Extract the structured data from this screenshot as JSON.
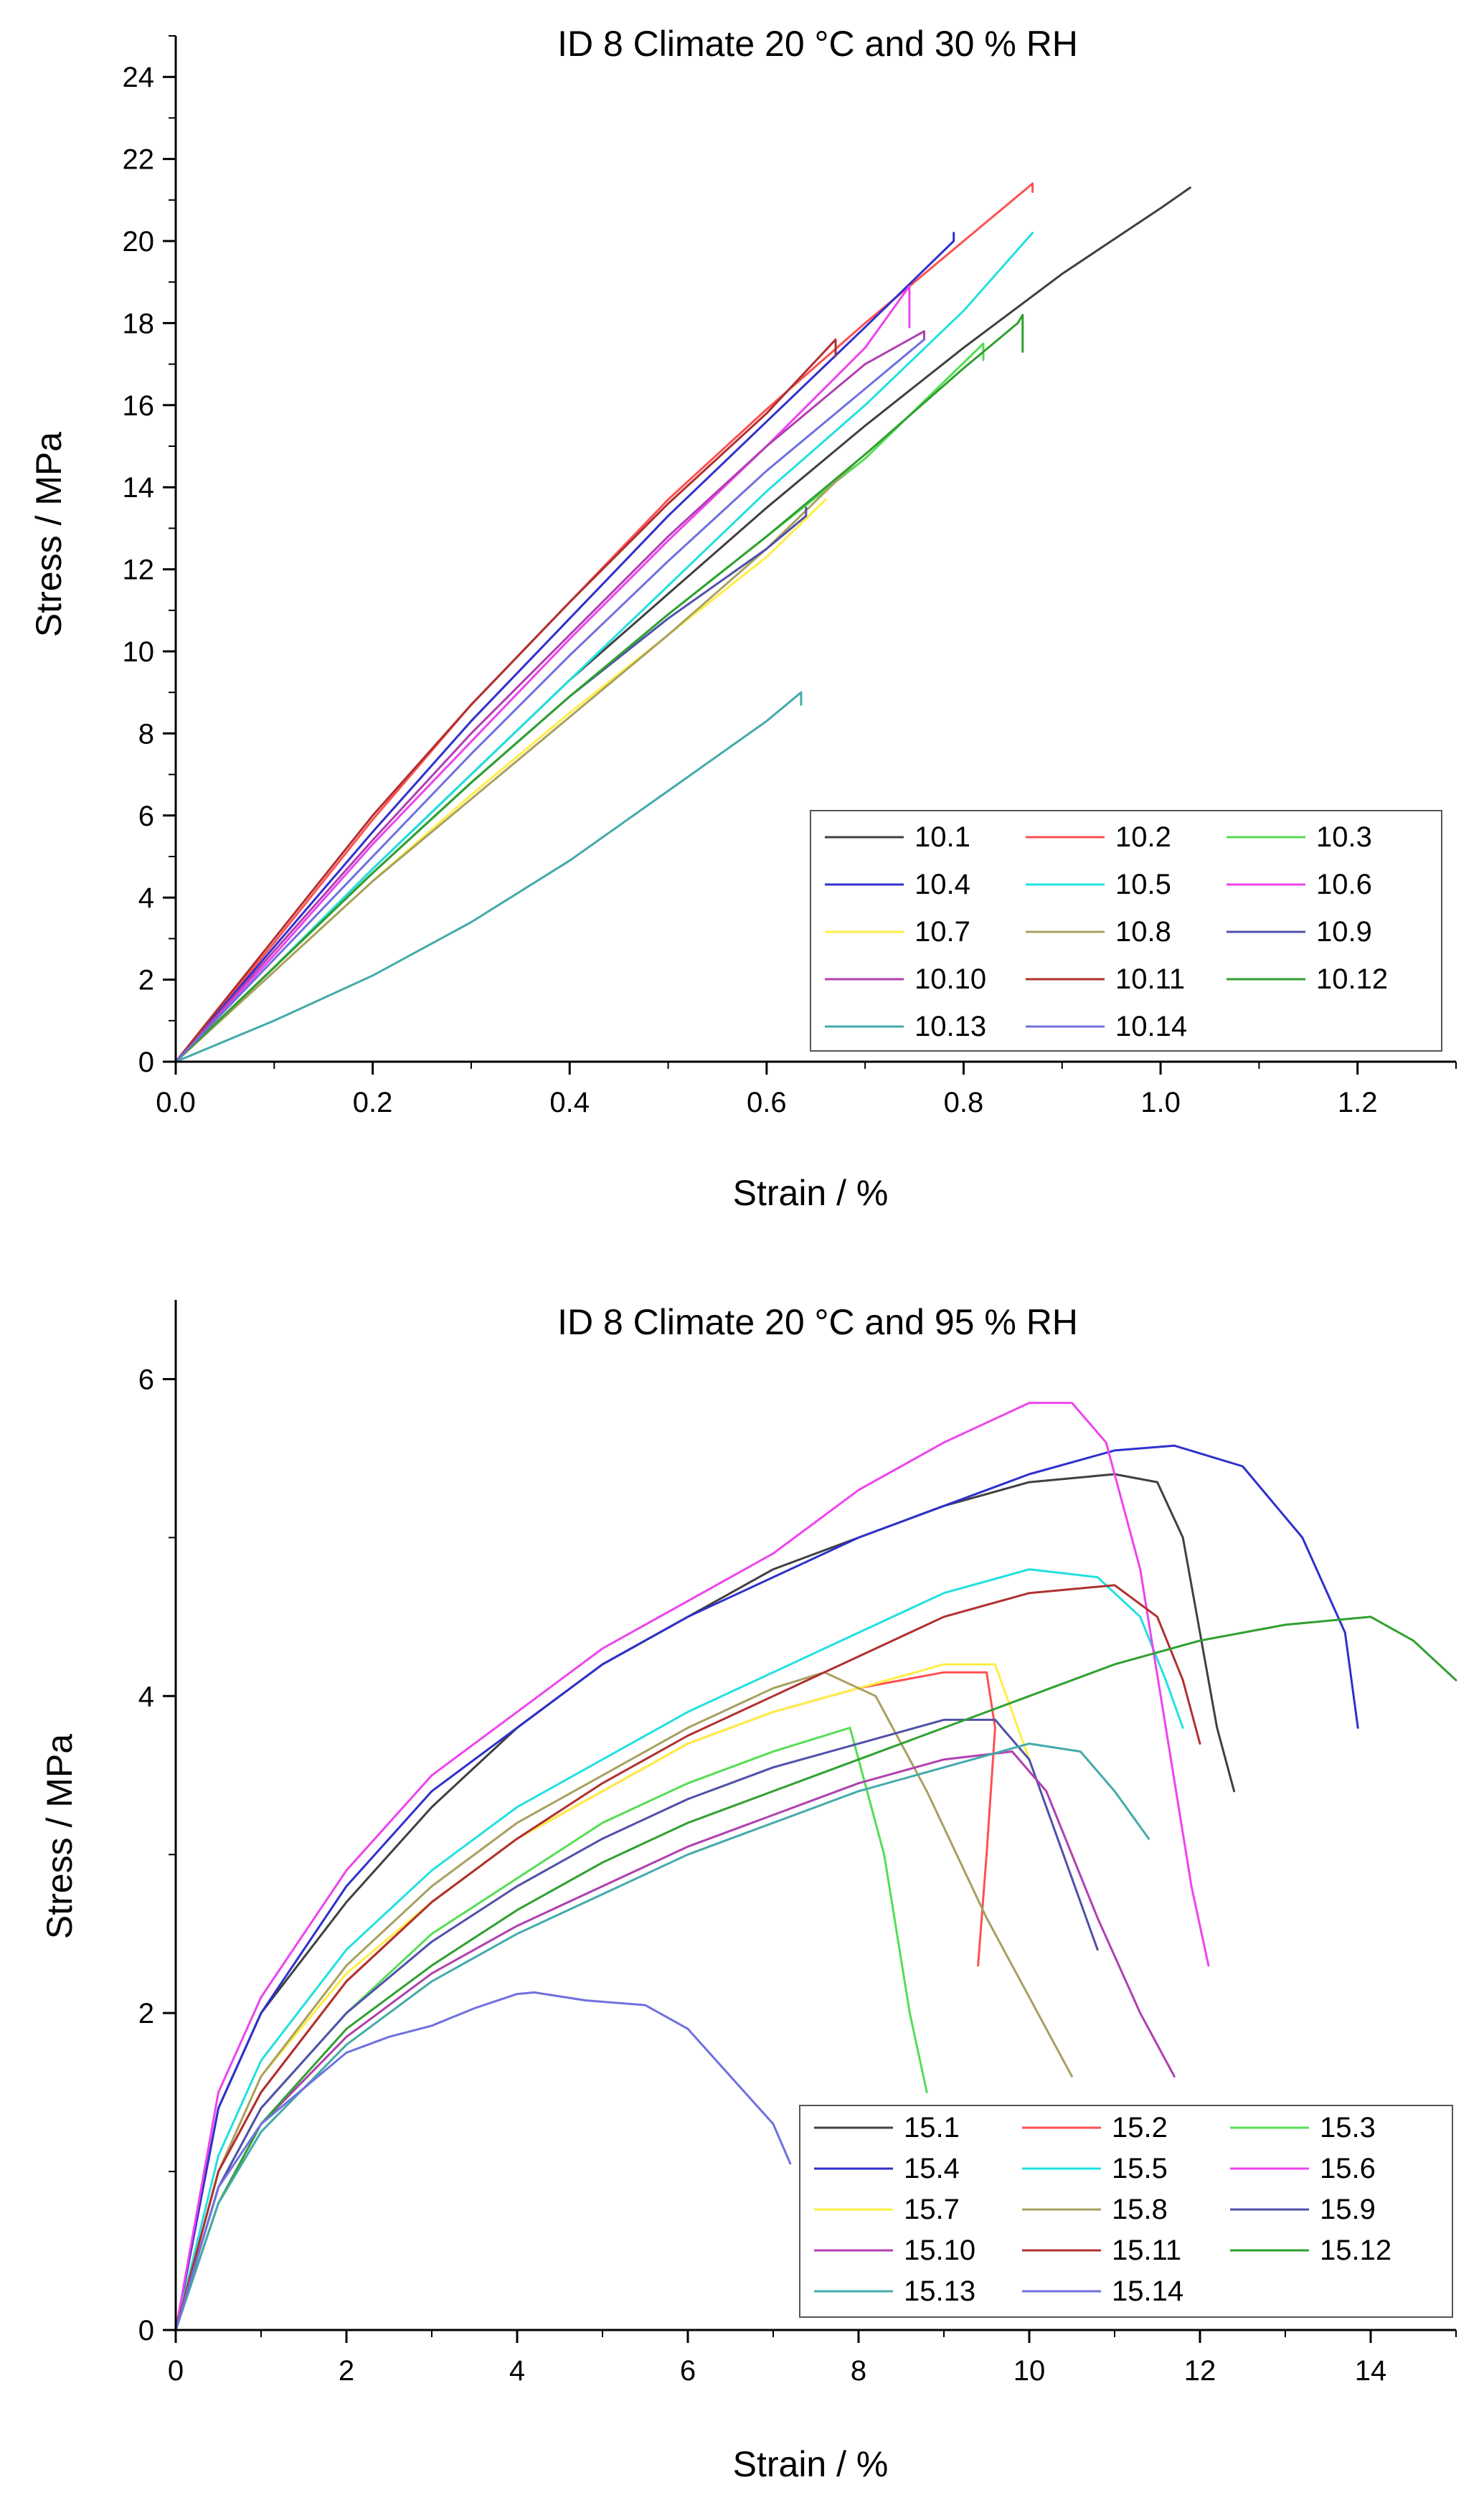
{
  "figure": {
    "charts": [
      {
        "title": "ID 8 Climate 20 °C and 30 % RH",
        "xlabel": "Strain / %",
        "ylabel": "Stress / MPa",
        "xticks": [
          "0.0",
          "0.2",
          "0.4",
          "0.6",
          "0.8",
          "1.0",
          "1.2"
        ],
        "yticks": [
          "0",
          "2",
          "4",
          "6",
          "8",
          "10",
          "12",
          "14",
          "16",
          "18",
          "20",
          "22",
          "24"
        ]
      },
      {
        "title": "ID 8 Climate 20 °C and 95 % RH",
        "xlabel": "Strain / %",
        "ylabel": "Stress / MPa",
        "xticks": [
          "0",
          "2",
          "4",
          "6",
          "8",
          "10",
          "12",
          "14"
        ],
        "yticks": [
          "0",
          "2",
          "4",
          "6"
        ]
      }
    ]
  },
  "chart_data": [
    {
      "type": "line",
      "title": "ID 8 Climate 20 °C and 30 % RH",
      "xlabel": "Strain / %",
      "ylabel": "Stress / MPa",
      "xlim": [
        0,
        1.3
      ],
      "ylim": [
        0,
        25
      ],
      "grid": false,
      "legend_position": "bottom-right",
      "series": [
        {
          "name": "10.1",
          "color": "#404040",
          "x": [
            0,
            0.1,
            0.2,
            0.3,
            0.4,
            0.5,
            0.6,
            0.7,
            0.8,
            0.9,
            1.0,
            1.03
          ],
          "y": [
            0,
            2.3,
            4.7,
            7.0,
            9.3,
            11.4,
            13.5,
            15.5,
            17.4,
            19.2,
            20.8,
            21.3
          ]
        },
        {
          "name": "10.2",
          "color": "#ff5050",
          "x": [
            0,
            0.1,
            0.2,
            0.3,
            0.4,
            0.5,
            0.6,
            0.7,
            0.8,
            0.87,
            0.87
          ],
          "y": [
            0,
            2.9,
            5.9,
            8.7,
            11.2,
            13.7,
            15.9,
            18.0,
            20.0,
            21.4,
            21.2
          ]
        },
        {
          "name": "10.3",
          "color": "#55dd55",
          "x": [
            0,
            0.1,
            0.2,
            0.3,
            0.4,
            0.5,
            0.6,
            0.7,
            0.82,
            0.82
          ],
          "y": [
            0,
            2.3,
            4.6,
            6.8,
            8.9,
            10.9,
            12.8,
            14.7,
            17.5,
            17.1
          ]
        },
        {
          "name": "10.4",
          "color": "#3030cc",
          "x": [
            0,
            0.1,
            0.2,
            0.3,
            0.4,
            0.5,
            0.6,
            0.7,
            0.79,
            0.79
          ],
          "y": [
            0,
            2.8,
            5.6,
            8.3,
            10.8,
            13.3,
            15.6,
            17.9,
            20.0,
            20.2
          ]
        },
        {
          "name": "10.5",
          "color": "#22e0e0",
          "x": [
            0,
            0.1,
            0.2,
            0.3,
            0.4,
            0.5,
            0.6,
            0.7,
            0.8,
            0.87
          ],
          "y": [
            0,
            2.3,
            4.7,
            7.0,
            9.3,
            11.6,
            13.9,
            16.0,
            18.3,
            20.2
          ]
        },
        {
          "name": "10.6",
          "color": "#ee44ee",
          "x": [
            0,
            0.1,
            0.2,
            0.3,
            0.4,
            0.5,
            0.6,
            0.7,
            0.745,
            0.745
          ],
          "y": [
            0,
            2.6,
            5.3,
            7.8,
            10.3,
            12.7,
            15.0,
            17.4,
            18.9,
            17.9
          ]
        },
        {
          "name": "10.7",
          "color": "#ffee44",
          "x": [
            0,
            0.1,
            0.2,
            0.3,
            0.4,
            0.5,
            0.6,
            0.66
          ],
          "y": [
            0,
            2.2,
            4.4,
            6.5,
            8.5,
            10.4,
            12.3,
            13.7
          ]
        },
        {
          "name": "10.8",
          "color": "#a8a060",
          "x": [
            0,
            0.1,
            0.2,
            0.3,
            0.4,
            0.5,
            0.6,
            0.69
          ],
          "y": [
            0,
            2.2,
            4.4,
            6.4,
            8.4,
            10.4,
            12.5,
            14.6
          ]
        },
        {
          "name": "10.9",
          "color": "#5050aa",
          "x": [
            0,
            0.1,
            0.2,
            0.3,
            0.4,
            0.5,
            0.6,
            0.64,
            0.64
          ],
          "y": [
            0,
            2.3,
            4.6,
            6.8,
            8.9,
            10.8,
            12.5,
            13.3,
            13.5
          ]
        },
        {
          "name": "10.10",
          "color": "#b040b0",
          "x": [
            0,
            0.1,
            0.2,
            0.3,
            0.4,
            0.5,
            0.6,
            0.7,
            0.76,
            0.76
          ],
          "y": [
            0,
            2.7,
            5.4,
            8.0,
            10.4,
            12.8,
            15.0,
            17.0,
            17.8,
            17.6
          ]
        },
        {
          "name": "10.11",
          "color": "#b03030",
          "x": [
            0,
            0.1,
            0.2,
            0.3,
            0.4,
            0.5,
            0.6,
            0.67,
            0.67
          ],
          "y": [
            0,
            3.0,
            6.0,
            8.7,
            11.2,
            13.6,
            15.8,
            17.6,
            17.2
          ]
        },
        {
          "name": "10.12",
          "color": "#30a030",
          "x": [
            0,
            0.1,
            0.2,
            0.3,
            0.4,
            0.5,
            0.6,
            0.7,
            0.8,
            0.855,
            0.86,
            0.86
          ],
          "y": [
            0,
            2.3,
            4.6,
            6.8,
            8.9,
            10.9,
            12.8,
            14.8,
            16.9,
            18.0,
            18.2,
            17.3
          ]
        },
        {
          "name": "10.13",
          "color": "#44aaaa",
          "x": [
            0,
            0.1,
            0.2,
            0.3,
            0.4,
            0.5,
            0.6,
            0.635,
            0.635
          ],
          "y": [
            0,
            1.0,
            2.1,
            3.4,
            4.9,
            6.6,
            8.3,
            9.0,
            8.7
          ]
        },
        {
          "name": "10.14",
          "color": "#7070e0",
          "x": [
            0,
            0.1,
            0.2,
            0.3,
            0.4,
            0.5,
            0.6,
            0.7,
            0.76
          ],
          "y": [
            0,
            2.5,
            5.0,
            7.5,
            9.9,
            12.2,
            14.4,
            16.4,
            17.6
          ]
        }
      ]
    },
    {
      "type": "line",
      "title": "ID 8 Climate 20 °C and 95 % RH",
      "xlabel": "Strain / %",
      "ylabel": "Stress / MPa",
      "xlim": [
        0,
        15
      ],
      "ylim": [
        0,
        6.5
      ],
      "grid": false,
      "legend_position": "bottom-right",
      "series": [
        {
          "name": "15.1",
          "color": "#404040",
          "x": [
            0,
            0.5,
            1,
            2,
            3,
            4,
            5,
            6,
            7,
            8,
            9,
            10,
            11,
            11.5,
            11.8,
            12.0,
            12.2,
            12.4
          ],
          "y": [
            0,
            1.4,
            2.0,
            2.7,
            3.3,
            3.8,
            4.2,
            4.5,
            4.8,
            5.0,
            5.2,
            5.35,
            5.4,
            5.35,
            5.0,
            4.4,
            3.8,
            3.4
          ]
        },
        {
          "name": "15.2",
          "color": "#ff5050",
          "x": [
            0,
            0.5,
            1,
            2,
            3,
            4,
            5,
            6,
            7,
            8,
            9,
            9.5,
            9.6,
            9.5,
            9.4
          ],
          "y": [
            0,
            1.0,
            1.5,
            2.2,
            2.7,
            3.1,
            3.4,
            3.7,
            3.9,
            4.05,
            4.15,
            4.15,
            3.8,
            3.0,
            2.3
          ]
        },
        {
          "name": "15.3",
          "color": "#55dd55",
          "x": [
            0,
            0.5,
            1,
            2,
            3,
            4,
            5,
            6,
            7,
            7.9,
            8.3,
            8.6,
            8.8
          ],
          "y": [
            0,
            0.9,
            1.4,
            2.0,
            2.5,
            2.85,
            3.2,
            3.45,
            3.65,
            3.8,
            3.0,
            2.0,
            1.5
          ]
        },
        {
          "name": "15.4",
          "color": "#3030cc",
          "x": [
            0,
            0.5,
            1,
            2,
            3,
            4,
            5,
            6,
            7,
            8,
            9,
            10,
            11,
            11.7,
            12.5,
            13.2,
            13.7,
            13.85
          ],
          "y": [
            0,
            1.4,
            2.0,
            2.8,
            3.4,
            3.8,
            4.2,
            4.5,
            4.75,
            5.0,
            5.2,
            5.4,
            5.55,
            5.58,
            5.45,
            5.0,
            4.4,
            3.8
          ]
        },
        {
          "name": "15.5",
          "color": "#22e0e0",
          "x": [
            0,
            0.5,
            1,
            2,
            3,
            4,
            5,
            6,
            7,
            8,
            9,
            10,
            10.8,
            11.3,
            11.6,
            11.8
          ],
          "y": [
            0,
            1.1,
            1.7,
            2.4,
            2.9,
            3.3,
            3.6,
            3.9,
            4.15,
            4.4,
            4.65,
            4.8,
            4.75,
            4.5,
            4.1,
            3.8
          ]
        },
        {
          "name": "15.6",
          "color": "#ee44ee",
          "x": [
            0,
            0.5,
            1,
            2,
            3,
            4,
            5,
            6,
            7,
            8,
            9,
            10,
            10.5,
            10.9,
            11.3,
            11.6,
            11.9,
            12.1
          ],
          "y": [
            0,
            1.5,
            2.1,
            2.9,
            3.5,
            3.9,
            4.3,
            4.6,
            4.9,
            5.3,
            5.6,
            5.85,
            5.85,
            5.6,
            4.8,
            3.8,
            2.8,
            2.3
          ]
        },
        {
          "name": "15.7",
          "color": "#ffee44",
          "x": [
            0,
            0.5,
            1,
            2,
            3,
            4,
            5,
            6,
            7,
            8,
            9,
            9.6,
            9.8,
            10.0
          ],
          "y": [
            0,
            1.0,
            1.6,
            2.25,
            2.7,
            3.1,
            3.4,
            3.7,
            3.9,
            4.05,
            4.2,
            4.2,
            3.9,
            3.6
          ]
        },
        {
          "name": "15.8",
          "color": "#a8a060",
          "x": [
            0,
            0.5,
            1,
            2,
            3,
            4,
            5,
            6,
            7,
            7.6,
            8.2,
            8.8,
            9.5,
            10.0,
            10.5
          ],
          "y": [
            0,
            1.0,
            1.6,
            2.3,
            2.8,
            3.2,
            3.5,
            3.8,
            4.05,
            4.15,
            4.0,
            3.4,
            2.6,
            2.1,
            1.6
          ]
        },
        {
          "name": "15.9",
          "color": "#5050aa",
          "x": [
            0,
            0.5,
            1,
            2,
            3,
            4,
            5,
            6,
            7,
            8,
            9,
            9.6,
            10.0,
            10.4,
            10.8
          ],
          "y": [
            0,
            0.9,
            1.4,
            2.0,
            2.45,
            2.8,
            3.1,
            3.35,
            3.55,
            3.7,
            3.85,
            3.85,
            3.6,
            3.0,
            2.4
          ]
        },
        {
          "name": "15.10",
          "color": "#b040b0",
          "x": [
            0,
            0.5,
            1,
            2,
            3,
            4,
            5,
            6,
            7,
            8,
            9,
            9.8,
            10.2,
            10.8,
            11.3,
            11.7
          ],
          "y": [
            0,
            0.8,
            1.3,
            1.85,
            2.25,
            2.55,
            2.8,
            3.05,
            3.25,
            3.45,
            3.6,
            3.65,
            3.4,
            2.6,
            2.0,
            1.6
          ]
        },
        {
          "name": "15.11",
          "color": "#b03030",
          "x": [
            0,
            0.5,
            1,
            2,
            3,
            4,
            5,
            6,
            7,
            8,
            9,
            10,
            11,
            11.5,
            11.8,
            12.0
          ],
          "y": [
            0,
            1.0,
            1.5,
            2.2,
            2.7,
            3.1,
            3.45,
            3.75,
            4.0,
            4.25,
            4.5,
            4.65,
            4.7,
            4.5,
            4.1,
            3.7
          ]
        },
        {
          "name": "15.12",
          "color": "#30a030",
          "x": [
            0,
            0.5,
            1,
            2,
            3,
            4,
            5,
            6,
            7,
            8,
            9,
            10,
            11,
            12,
            13,
            14,
            14.5,
            15.0
          ],
          "y": [
            0,
            0.8,
            1.3,
            1.9,
            2.3,
            2.65,
            2.95,
            3.2,
            3.4,
            3.6,
            3.8,
            4.0,
            4.2,
            4.35,
            4.45,
            4.5,
            4.35,
            4.1
          ]
        },
        {
          "name": "15.13",
          "color": "#44aaaa",
          "x": [
            0,
            0.5,
            1,
            2,
            3,
            4,
            5,
            6,
            7,
            8,
            9,
            10,
            10.6,
            11.0,
            11.4
          ],
          "y": [
            0,
            0.8,
            1.25,
            1.8,
            2.2,
            2.5,
            2.75,
            3.0,
            3.2,
            3.4,
            3.55,
            3.7,
            3.65,
            3.4,
            3.1
          ]
        },
        {
          "name": "15.14",
          "color": "#7070e0",
          "x": [
            0,
            0.5,
            1,
            2,
            2.5,
            3,
            3.5,
            4,
            4.2,
            4.8,
            5.5,
            6.0,
            6.5,
            7.0,
            7.2
          ],
          "y": [
            0,
            0.9,
            1.3,
            1.75,
            1.85,
            1.92,
            2.03,
            2.12,
            2.13,
            2.08,
            2.05,
            1.9,
            1.6,
            1.3,
            1.05
          ]
        }
      ]
    }
  ]
}
